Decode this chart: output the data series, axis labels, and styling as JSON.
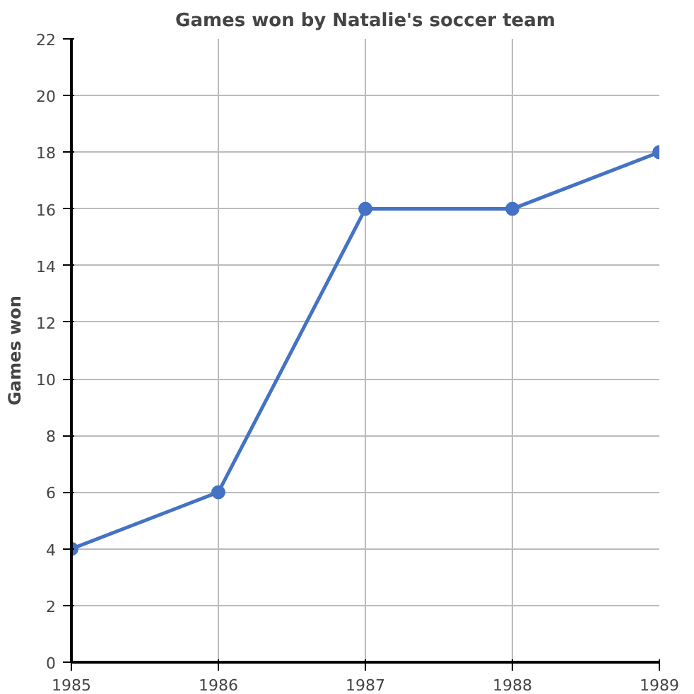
{
  "chart_data": {
    "type": "line",
    "title": "Games won by Natalie's soccer team",
    "ylabel": "Games won",
    "x": [
      1985,
      1986,
      1987,
      1988,
      1989
    ],
    "series": [
      {
        "color": "#4472c4",
        "values": [
          4,
          6,
          16,
          16,
          18
        ]
      }
    ],
    "xlim": [
      1985,
      1989
    ],
    "xticks": [
      1985,
      1986,
      1987,
      1988,
      1989
    ],
    "ylim": [
      0,
      22
    ],
    "yticks": [
      0,
      2,
      4,
      6,
      8,
      10,
      12,
      14,
      16,
      18,
      20,
      22
    ],
    "grid": true,
    "marker": "circle",
    "line_style": "solid"
  }
}
